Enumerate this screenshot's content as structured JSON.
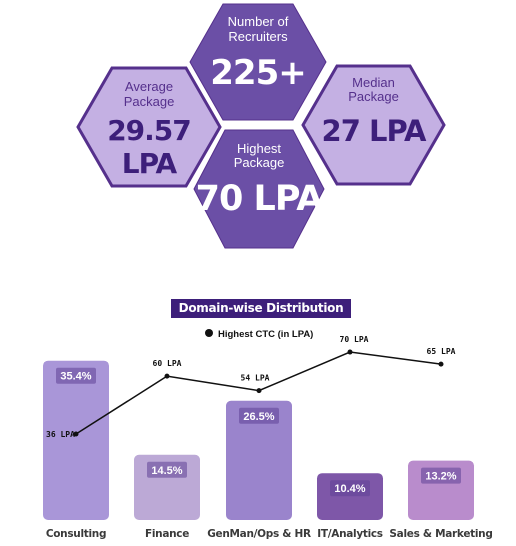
{
  "stats": {
    "recruiters": {
      "label_line1": "Number of",
      "label_line2": "Recruiters",
      "value": "225+"
    },
    "average": {
      "label_line1": "Average",
      "label_line2": "Package",
      "value": "29.57 LPA"
    },
    "median": {
      "label_line1": "Median",
      "label_line2": "Package",
      "value": "27 LPA"
    },
    "highest": {
      "label_line1": "Highest",
      "label_line2": "Package",
      "value": "70 LPA"
    }
  },
  "colors": {
    "hex_dark": "#6b4fa6",
    "hex_light": "#c4b0e3",
    "hex_border": "#55308c",
    "title_bg": "#3d1f7a"
  },
  "chart_data": {
    "type": "bar",
    "title": "Domain-wise Distribution",
    "categories": [
      "Consulting",
      "Finance",
      "GenMan/Ops & HR",
      "IT/Analytics",
      "Sales & Marketing"
    ],
    "series": [
      {
        "values": [
          35.4,
          14.5,
          26.5,
          10.4,
          13.2
        ],
        "labels": [
          "35.4%",
          "14.5%",
          "26.5%",
          "10.4%",
          "13.2%"
        ]
      },
      {
        "name": "Highest CTC (in LPA)",
        "type": "line",
        "values": [
          36,
          60,
          54,
          70,
          65
        ],
        "labels": [
          "36 LPA",
          "60 LPA",
          "54 LPA",
          "70 LPA",
          "65 LPA"
        ]
      }
    ],
    "bar_colors": [
      "#a996d8",
      "#bca9d6",
      "#9a84cc",
      "#7e57a8",
      "#b98ccc"
    ],
    "legend_position": "top",
    "grid": false
  }
}
